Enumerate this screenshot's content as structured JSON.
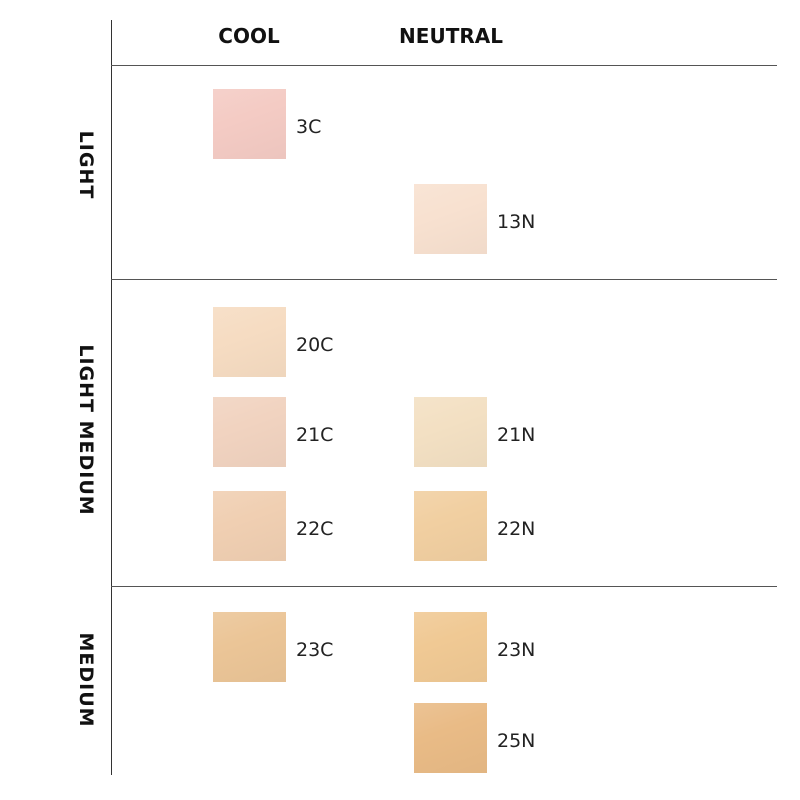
{
  "columns": [
    "COOL",
    "NEUTRAL"
  ],
  "rows": [
    {
      "label": "LIGHT",
      "lines": [
        [
          {
            "name": "3C",
            "color": "#f4cbc4"
          },
          null
        ],
        [
          null,
          {
            "name": "13N",
            "color": "#f8e1d0"
          }
        ]
      ]
    },
    {
      "label": "LIGHT MEDIUM",
      "lines": [
        [
          {
            "name": "20C",
            "color": "#f6dcc2"
          },
          null
        ],
        [
          {
            "name": "21C",
            "color": "#f1d3c0"
          },
          {
            "name": "21N",
            "color": "#f3e0c3"
          }
        ],
        [
          {
            "name": "22C",
            "color": "#f0cfb2"
          },
          {
            "name": "22N",
            "color": "#f1cfa1"
          }
        ]
      ]
    },
    {
      "label": "MEDIUM",
      "lines": [
        [
          {
            "name": "23C",
            "color": "#ebc597"
          },
          {
            "name": "23N",
            "color": "#f0c994"
          }
        ],
        [
          null,
          {
            "name": "25N",
            "color": "#e9bb86"
          }
        ]
      ]
    }
  ]
}
